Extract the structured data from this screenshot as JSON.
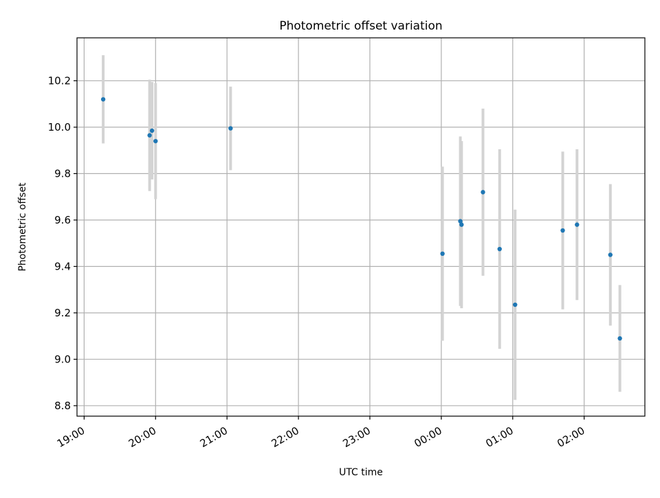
{
  "chart_data": {
    "type": "scatter",
    "title": "Photometric offset variation",
    "xlabel": "UTC time",
    "ylabel": "Photometric offset",
    "x_tick_labels": [
      "19:00",
      "20:00",
      "21:00",
      "22:00",
      "23:00",
      "00:00",
      "01:00",
      "02:00"
    ],
    "x_ticks_hours": [
      0,
      1,
      2,
      3,
      4,
      5,
      6,
      7
    ],
    "x_axis_start_label": "19:00",
    "xlim_hours": [
      -0.1,
      7.85
    ],
    "ylim": [
      8.755,
      10.385
    ],
    "y_ticks": [
      8.8,
      9.0,
      9.2,
      9.4,
      9.6,
      9.8,
      10.0,
      10.2
    ],
    "y_tick_labels": [
      "8.8",
      "9.0",
      "9.2",
      "9.4",
      "9.6",
      "9.8",
      "10.0",
      "10.2"
    ],
    "grid": true,
    "points": [
      {
        "time": "19:16",
        "value": 10.12,
        "err": 0.19
      },
      {
        "time": "19:55",
        "value": 9.965,
        "err": 0.24
      },
      {
        "time": "19:57",
        "value": 9.985,
        "err": 0.21
      },
      {
        "time": "20:00",
        "value": 9.94,
        "err": 0.25
      },
      {
        "time": "21:03",
        "value": 9.995,
        "err": 0.18
      },
      {
        "time": "00:01",
        "value": 9.455,
        "err": 0.375
      },
      {
        "time": "00:16",
        "value": 9.595,
        "err": 0.365
      },
      {
        "time": "00:17",
        "value": 9.58,
        "err": 0.36
      },
      {
        "time": "00:35",
        "value": 9.72,
        "err": 0.36
      },
      {
        "time": "00:49",
        "value": 9.475,
        "err": 0.43
      },
      {
        "time": "01:02",
        "value": 9.235,
        "err": 0.41
      },
      {
        "time": "01:42",
        "value": 9.555,
        "err": 0.34
      },
      {
        "time": "01:54",
        "value": 9.58,
        "err": 0.325
      },
      {
        "time": "02:22",
        "value": 9.45,
        "err": 0.305
      },
      {
        "time": "02:30",
        "value": 9.09,
        "err": 0.23
      }
    ],
    "colors": {
      "marker": "#1f77b4",
      "errorbar": "#d3d3d3",
      "grid": "#b0b0b0"
    }
  }
}
